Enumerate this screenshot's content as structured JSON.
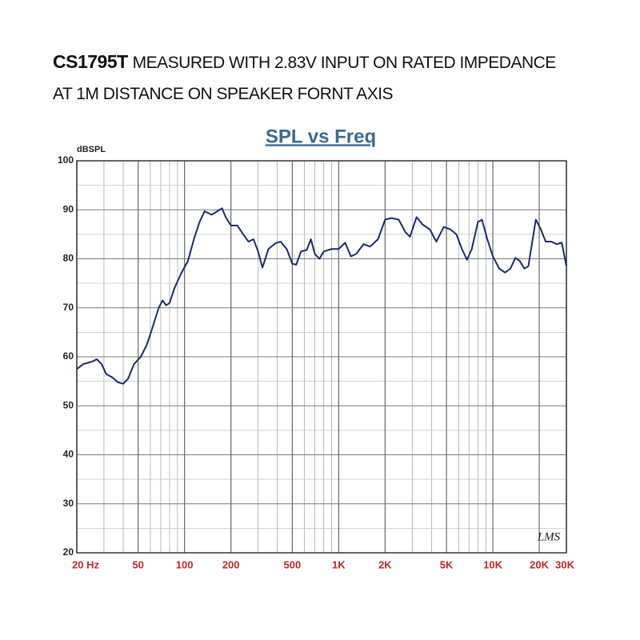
{
  "heading": {
    "model": "CS1795T",
    "line1": "MEASURED WITH 2.83V INPUT ON RATED IMPEDANCE",
    "line2": "AT 1M DISTANCE ON SPEAKER FORNT AXIS"
  },
  "chart_data": {
    "type": "line",
    "title": "SPL vs Freq",
    "ylabel": "dBSPL",
    "annotation": "LMS",
    "xscale": "log",
    "grid": true,
    "color": "#1c2a6e",
    "xlim": [
      20,
      30000
    ],
    "ylim": [
      20,
      100
    ],
    "xticks": [
      {
        "value": 20,
        "label": "20 Hz"
      },
      50,
      100,
      200,
      500,
      {
        "value": 1000,
        "label": "1K"
      },
      {
        "value": 2000,
        "label": "2K"
      },
      {
        "value": 5000,
        "label": "5K"
      },
      {
        "value": 10000,
        "label": "10K"
      },
      {
        "value": 20000,
        "label": "20K"
      },
      {
        "value": 30000,
        "label": "30K"
      }
    ],
    "yticks": [
      20,
      30,
      40,
      50,
      60,
      70,
      80,
      90,
      100
    ],
    "x": [
      20,
      22,
      25,
      27,
      29,
      31,
      34,
      37,
      40,
      43,
      47,
      52,
      57,
      62,
      68,
      72,
      76,
      80,
      86,
      95,
      105,
      115,
      125,
      135,
      150,
      165,
      175,
      185,
      200,
      220,
      240,
      260,
      280,
      300,
      320,
      350,
      390,
      420,
      460,
      500,
      530,
      570,
      620,
      660,
      700,
      750,
      800,
      900,
      1000,
      1100,
      1200,
      1300,
      1450,
      1600,
      1800,
      2000,
      2200,
      2450,
      2700,
      2900,
      3200,
      3500,
      3900,
      4300,
      4800,
      5300,
      5800,
      6300,
      6800,
      7300,
      8000,
      8500,
      9200,
      10000,
      11000,
      12000,
      13000,
      14000,
      15000,
      16000,
      17000,
      19000,
      20500,
      22000,
      24000,
      26000,
      28000,
      30000
    ],
    "values": [
      57.5,
      58.5,
      59,
      59.5,
      58.5,
      56.5,
      55.8,
      54.8,
      54.5,
      55.5,
      58.5,
      60,
      62.5,
      66,
      70,
      71.5,
      70.5,
      71,
      74,
      77,
      79.5,
      84,
      87.5,
      89.7,
      89,
      89.8,
      90.3,
      88.5,
      86.8,
      86.8,
      85,
      83.5,
      84,
      81.5,
      78.2,
      82,
      83.2,
      83.5,
      82,
      79,
      78.8,
      81.5,
      81.8,
      84,
      81,
      80,
      81.5,
      82,
      82,
      83.3,
      80.5,
      81,
      83,
      82.5,
      84,
      88,
      88.3,
      88,
      85.5,
      84.5,
      88.5,
      87,
      86,
      83.5,
      86.5,
      86,
      85,
      82,
      79.8,
      82,
      87.5,
      88,
      84,
      80.5,
      78,
      77.2,
      78,
      80.2,
      79.5,
      78,
      78.5,
      88,
      86,
      83.5,
      83.5,
      83,
      83.3,
      78.5
    ]
  }
}
